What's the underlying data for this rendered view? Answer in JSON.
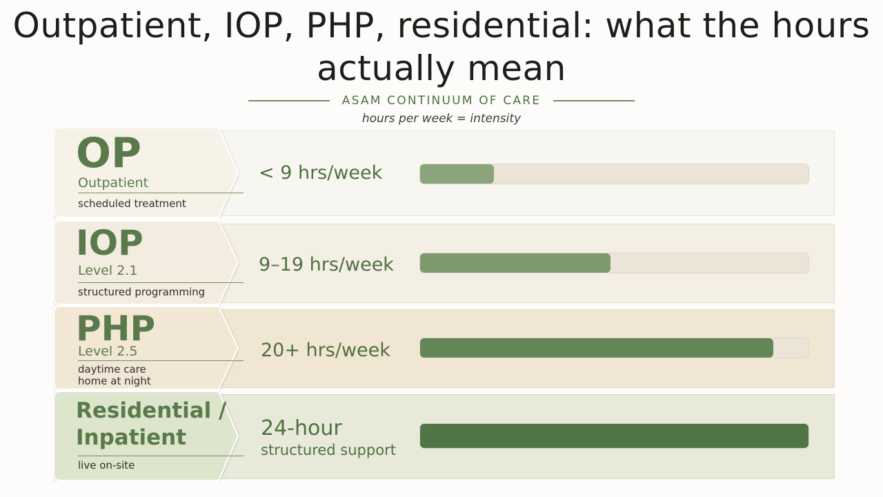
{
  "title": "Outpatient, IOP, PHP, residential: what the hours actually mean",
  "subtitle": "ASAM CONTINUUM OF CARE",
  "tagline": "hours per week = intensity",
  "colors": {
    "accent_green": "#5a7a4c",
    "bar_track": "#ece4d7",
    "bar_fill": [
      "#8aa57c",
      "#7c9a6e",
      "#648656",
      "#4f7644"
    ]
  },
  "chart_data": {
    "type": "bar",
    "orientation": "horizontal",
    "title": "Outpatient, IOP, PHP, residential: what the hours actually mean",
    "subtitle": "ASAM CONTINUUM OF CARE",
    "xlabel": "hours per week = intensity",
    "categories": [
      "OP",
      "IOP",
      "PHP",
      "Residential / Inpatient"
    ],
    "values": [
      0.19,
      0.49,
      0.91,
      1.0
    ],
    "value_unit": "fraction of bar track filled",
    "grid": false,
    "legend": "none"
  },
  "levels": [
    {
      "abbr": "OP",
      "name": "Outpatient",
      "desc": [
        "scheduled treatment"
      ],
      "hours_main": "< 9 hrs/week",
      "hours_sub": "",
      "fill": 0.19
    },
    {
      "abbr": "IOP",
      "name": "Level 2.1",
      "desc": [
        "structured programming"
      ],
      "hours_main": "9–19 hrs/week",
      "hours_sub": "",
      "fill": 0.49
    },
    {
      "abbr": "PHP",
      "name": "Level 2.5",
      "desc": [
        "daytime care",
        "home at night"
      ],
      "hours_main": "20+ hrs/week",
      "hours_sub": "",
      "fill": 0.91
    },
    {
      "abbr": "Residential /",
      "name": "Inpatient",
      "desc": [
        "live on-site"
      ],
      "hours_main": "24-hour",
      "hours_sub": "structured support",
      "fill": 1.0
    }
  ]
}
